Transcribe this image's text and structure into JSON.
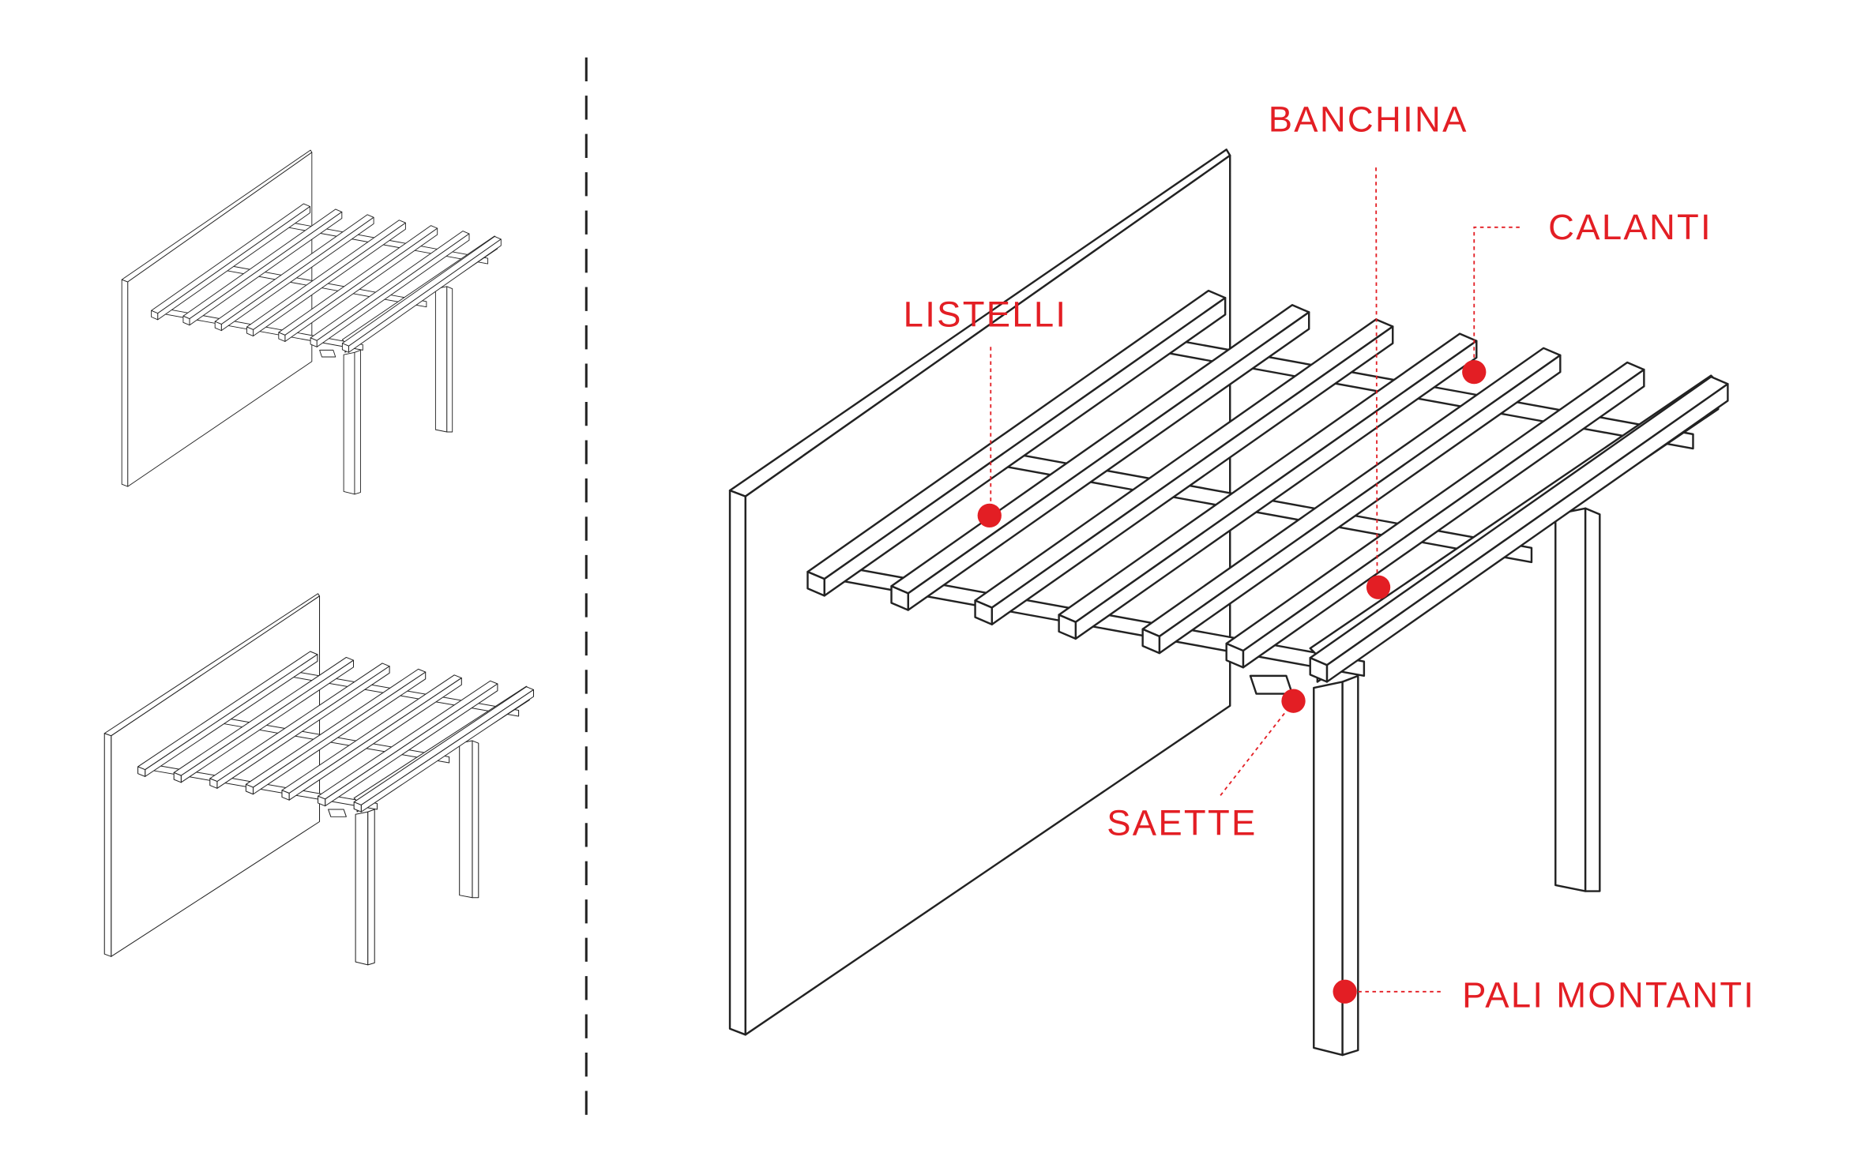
{
  "callouts": [
    {
      "label": "BANCHINA"
    },
    {
      "label": "CALANTI"
    },
    {
      "label": "LISTELLI"
    },
    {
      "label": "SAETTE"
    },
    {
      "label": "PALI MONTANTI"
    }
  ]
}
